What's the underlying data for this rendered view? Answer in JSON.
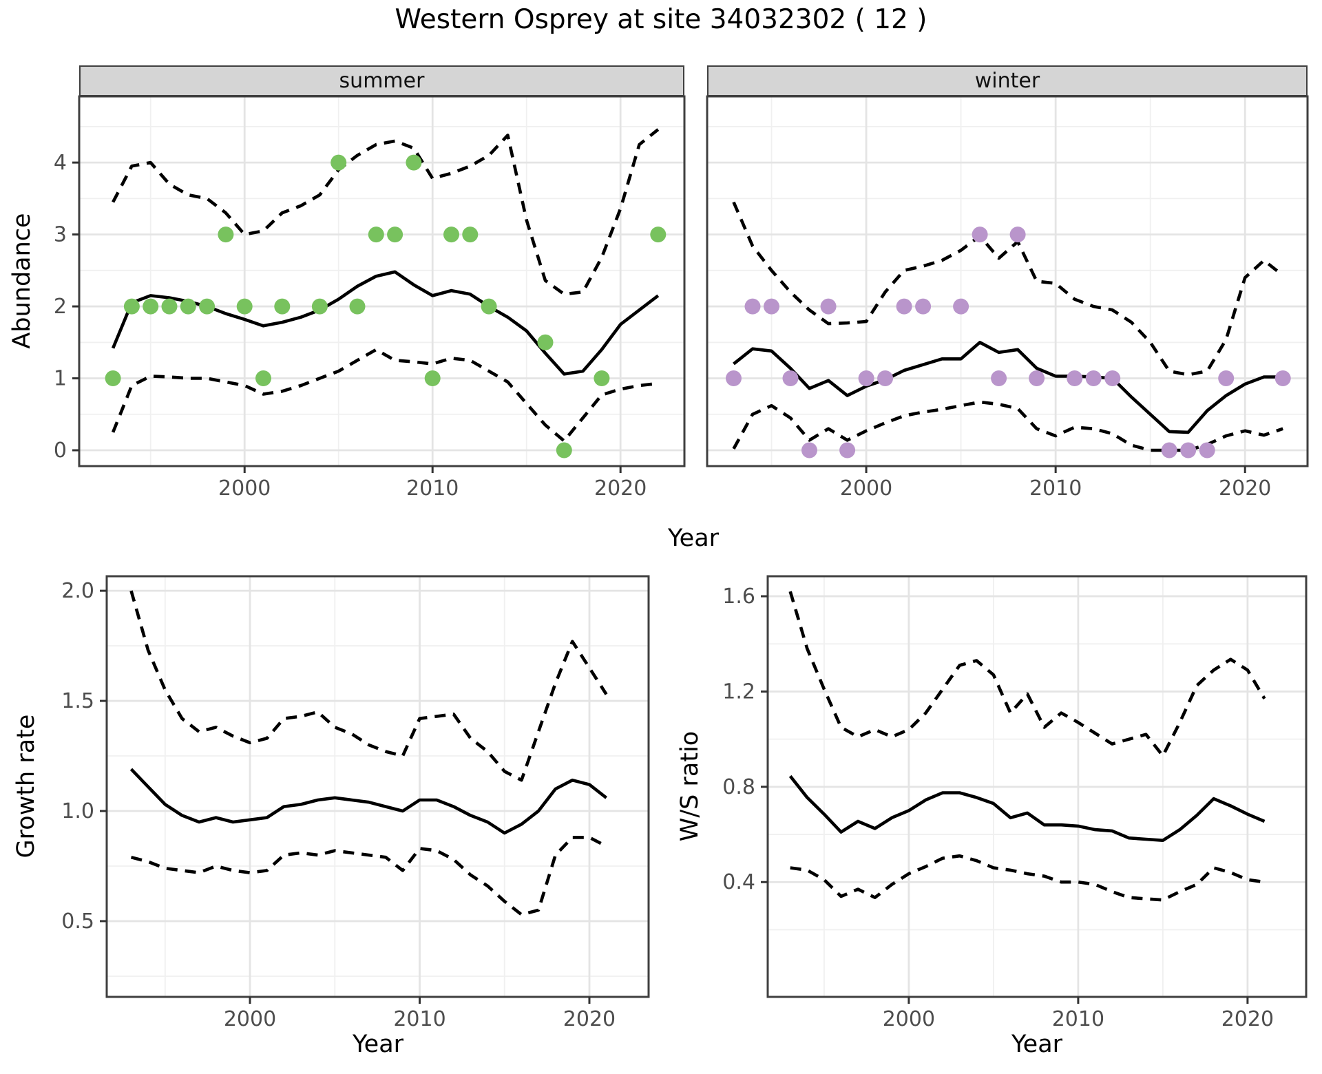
{
  "title": "Western Osprey at site 34032302 ( 12 )",
  "colors": {
    "summer_point": "#78c25e",
    "winter_point": "#b995cb",
    "line": "#000000",
    "strip_bg": "#d5d5d5",
    "grid_major": "#e4e4e4",
    "grid_minor": "#f0f0f0",
    "panel_border": "#3f3f3f",
    "tick_mark": "#333333",
    "tick_label": "#4d4d4d"
  },
  "chart_data": [
    {
      "id": "abundance-summer",
      "type": "line+scatter",
      "facet_label": "summer",
      "xlabel": "Year",
      "ylabel": "Abundance",
      "point_color": "#78c25e",
      "xlim": [
        1991.2,
        2023.4
      ],
      "ylim": [
        -0.22,
        4.92
      ],
      "xticks": {
        "values": [
          2000,
          2010,
          2020
        ],
        "labels": [
          "2000",
          "2010",
          "2020"
        ]
      },
      "yticks": {
        "values": [
          0,
          1,
          2,
          3,
          4
        ],
        "labels": [
          "0",
          "1",
          "2",
          "3",
          "4"
        ]
      },
      "x_minor": [
        1995,
        2005,
        2015
      ],
      "y_minor": [
        0.5,
        1.5,
        2.5,
        3.5,
        4.5
      ],
      "points": {
        "years": [
          1993,
          1994,
          1995,
          1996,
          1997,
          1998,
          1999,
          2000,
          2001,
          2002,
          2004,
          2005,
          2006,
          2007,
          2008,
          2009,
          2010,
          2011,
          2012,
          2013,
          2016,
          2017,
          2019,
          2022
        ],
        "values": [
          1,
          2,
          2,
          2,
          2,
          2,
          3,
          2,
          1,
          2,
          2,
          4,
          2,
          3,
          3,
          4,
          1,
          3,
          3,
          2,
          1.5,
          0,
          1,
          3
        ]
      },
      "mean": {
        "years": [
          1993,
          1994,
          1995,
          1996,
          1997,
          1998,
          1999,
          2000,
          2001,
          2002,
          2003,
          2004,
          2005,
          2006,
          2007,
          2008,
          2009,
          2010,
          2011,
          2012,
          2013,
          2014,
          2015,
          2016,
          2017,
          2018,
          2019,
          2020,
          2021,
          2022
        ],
        "values": [
          1.42,
          2.05,
          2.15,
          2.12,
          2.07,
          2.0,
          1.9,
          1.82,
          1.73,
          1.78,
          1.85,
          1.95,
          2.1,
          2.28,
          2.42,
          2.48,
          2.3,
          2.15,
          2.22,
          2.17,
          2.0,
          1.85,
          1.66,
          1.35,
          1.06,
          1.1,
          1.4,
          1.75,
          1.95,
          2.15
        ]
      },
      "upper": {
        "years": [
          1993,
          1994,
          1995,
          1996,
          1997,
          1998,
          1999,
          2000,
          2001,
          2002,
          2003,
          2004,
          2005,
          2006,
          2007,
          2008,
          2009,
          2010,
          2011,
          2012,
          2013,
          2014,
          2015,
          2016,
          2017,
          2018,
          2019,
          2020,
          2021,
          2022
        ],
        "values": [
          3.45,
          3.95,
          4.0,
          3.7,
          3.55,
          3.5,
          3.3,
          3.0,
          3.05,
          3.3,
          3.4,
          3.55,
          3.9,
          4.1,
          4.25,
          4.3,
          4.2,
          3.78,
          3.85,
          3.95,
          4.1,
          4.38,
          3.2,
          2.36,
          2.17,
          2.2,
          2.68,
          3.36,
          4.25,
          4.46
        ]
      },
      "lower": {
        "years": [
          1993,
          1994,
          1995,
          1996,
          1997,
          1998,
          1999,
          2000,
          2001,
          2002,
          2003,
          2004,
          2005,
          2006,
          2007,
          2008,
          2009,
          2010,
          2011,
          2012,
          2013,
          2014,
          2015,
          2016,
          2017,
          2018,
          2019,
          2020,
          2021,
          2022
        ],
        "values": [
          0.25,
          0.9,
          1.03,
          1.02,
          1.0,
          1.0,
          0.95,
          0.9,
          0.78,
          0.82,
          0.9,
          1.0,
          1.1,
          1.25,
          1.4,
          1.25,
          1.23,
          1.2,
          1.28,
          1.25,
          1.1,
          0.95,
          0.65,
          0.35,
          0.13,
          0.45,
          0.77,
          0.85,
          0.9,
          0.93
        ]
      }
    },
    {
      "id": "abundance-winter",
      "type": "line+scatter",
      "facet_label": "winter",
      "xlabel": "Year",
      "ylabel": "Abundance",
      "point_color": "#b995cb",
      "xlim": [
        1991.6,
        2023.3
      ],
      "ylim": [
        -0.22,
        4.92
      ],
      "xticks": {
        "values": [
          2000,
          2010,
          2020
        ],
        "labels": [
          "2000",
          "2010",
          "2020"
        ]
      },
      "yticks": {
        "values": [
          0,
          1,
          2,
          3,
          4
        ],
        "labels": [
          "0",
          "1",
          "2",
          "3",
          "4"
        ]
      },
      "x_minor": [
        1995,
        2005,
        2015
      ],
      "y_minor": [
        0.5,
        1.5,
        2.5,
        3.5,
        4.5
      ],
      "points": {
        "years": [
          1993,
          1994,
          1995,
          1996,
          1997,
          1998,
          1999,
          2000,
          2001,
          2002,
          2003,
          2005,
          2006,
          2007,
          2008,
          2009,
          2011,
          2012,
          2013,
          2016,
          2017,
          2018,
          2019,
          2022
        ],
        "values": [
          1,
          2,
          2,
          1,
          0,
          2,
          0,
          1,
          1,
          2,
          2,
          2,
          3,
          1,
          3,
          1,
          1,
          1,
          1,
          0,
          0,
          0,
          1,
          1
        ]
      },
      "mean": {
        "years": [
          1993,
          1994,
          1995,
          1996,
          1997,
          1998,
          1999,
          2000,
          2001,
          2002,
          2003,
          2004,
          2005,
          2006,
          2007,
          2008,
          2009,
          2010,
          2011,
          2012,
          2013,
          2014,
          2015,
          2016,
          2017,
          2018,
          2019,
          2020,
          2021,
          2022
        ],
        "values": [
          1.2,
          1.41,
          1.38,
          1.14,
          0.86,
          0.97,
          0.76,
          0.89,
          0.98,
          1.11,
          1.19,
          1.27,
          1.27,
          1.5,
          1.36,
          1.4,
          1.14,
          1.03,
          1.03,
          1.02,
          1.0,
          0.74,
          0.5,
          0.26,
          0.25,
          0.55,
          0.76,
          0.92,
          1.02,
          1.02
        ]
      },
      "upper": {
        "years": [
          1993,
          1994,
          1995,
          1996,
          1997,
          1998,
          1999,
          2000,
          2001,
          2002,
          2003,
          2004,
          2005,
          2006,
          2007,
          2008,
          2009,
          2010,
          2011,
          2012,
          2013,
          2014,
          2015,
          2016,
          2017,
          2018,
          2019,
          2020,
          2021,
          2022
        ],
        "values": [
          3.45,
          2.84,
          2.5,
          2.2,
          1.95,
          1.76,
          1.77,
          1.79,
          2.2,
          2.5,
          2.56,
          2.64,
          2.78,
          2.98,
          2.67,
          2.9,
          2.35,
          2.32,
          2.1,
          2.0,
          1.95,
          1.78,
          1.5,
          1.1,
          1.05,
          1.1,
          1.54,
          2.4,
          2.64,
          2.43
        ]
      },
      "lower": {
        "years": [
          1993,
          1994,
          1995,
          1996,
          1997,
          1998,
          1999,
          2000,
          2001,
          2002,
          2003,
          2004,
          2005,
          2006,
          2007,
          2008,
          2009,
          2010,
          2011,
          2012,
          2013,
          2014,
          2015,
          2016,
          2017,
          2018,
          2019,
          2020,
          2021,
          2022
        ],
        "values": [
          0.02,
          0.5,
          0.62,
          0.45,
          0.14,
          0.3,
          0.14,
          0.27,
          0.38,
          0.48,
          0.53,
          0.57,
          0.62,
          0.67,
          0.64,
          0.58,
          0.3,
          0.2,
          0.32,
          0.3,
          0.23,
          0.07,
          0.0,
          0.0,
          0.0,
          0.08,
          0.2,
          0.27,
          0.21,
          0.3
        ]
      }
    },
    {
      "id": "growth-rate",
      "type": "line",
      "xlabel": "Year",
      "ylabel": "Growth rate",
      "xlim": [
        1991.56,
        2023.49
      ],
      "ylim": [
        0.156,
        2.066
      ],
      "xticks": {
        "values": [
          2000,
          2010,
          2020
        ],
        "labels": [
          "2000",
          "2010",
          "2020"
        ]
      },
      "yticks": {
        "values": [
          0.5,
          1.0,
          1.5,
          2.0
        ],
        "labels": [
          "0.5",
          "1.0",
          "1.5",
          "2.0"
        ]
      },
      "x_minor": [
        1995,
        2005,
        2015
      ],
      "y_minor": [
        0.25,
        0.75,
        1.25,
        1.75
      ],
      "mean": {
        "years": [
          1993,
          1994,
          1995,
          1996,
          1997,
          1998,
          1999,
          2000,
          2001,
          2002,
          2003,
          2004,
          2005,
          2006,
          2007,
          2008,
          2009,
          2010,
          2011,
          2012,
          2013,
          2014,
          2015,
          2016,
          2017,
          2018,
          2019,
          2020,
          2021
        ],
        "values": [
          1.19,
          1.11,
          1.03,
          0.98,
          0.95,
          0.97,
          0.95,
          0.96,
          0.97,
          1.02,
          1.03,
          1.05,
          1.06,
          1.05,
          1.04,
          1.02,
          1.0,
          1.05,
          1.05,
          1.02,
          0.98,
          0.95,
          0.9,
          0.94,
          1.0,
          1.1,
          1.14,
          1.12,
          1.06
        ]
      },
      "upper": {
        "years": [
          1993,
          1994,
          1995,
          1996,
          1997,
          1998,
          1999,
          2000,
          2001,
          2002,
          2003,
          2004,
          2005,
          2006,
          2007,
          2008,
          2009,
          2010,
          2011,
          2012,
          2013,
          2014,
          2015,
          2016,
          2017,
          2018,
          2019,
          2020,
          2021
        ],
        "values": [
          2.0,
          1.73,
          1.55,
          1.42,
          1.36,
          1.38,
          1.34,
          1.31,
          1.33,
          1.42,
          1.43,
          1.45,
          1.38,
          1.35,
          1.3,
          1.27,
          1.25,
          1.42,
          1.43,
          1.44,
          1.33,
          1.27,
          1.18,
          1.14,
          1.36,
          1.58,
          1.77,
          1.65,
          1.53
        ]
      },
      "lower": {
        "years": [
          1993,
          1994,
          1995,
          1996,
          1997,
          1998,
          1999,
          2000,
          2001,
          2002,
          2003,
          2004,
          2005,
          2006,
          2007,
          2008,
          2009,
          2010,
          2011,
          2012,
          2013,
          2014,
          2015,
          2016,
          2017,
          2018,
          2019,
          2020,
          2021
        ],
        "values": [
          0.79,
          0.77,
          0.74,
          0.73,
          0.72,
          0.75,
          0.73,
          0.72,
          0.73,
          0.8,
          0.81,
          0.8,
          0.82,
          0.81,
          0.8,
          0.79,
          0.73,
          0.83,
          0.82,
          0.78,
          0.71,
          0.66,
          0.59,
          0.53,
          0.55,
          0.8,
          0.88,
          0.88,
          0.84
        ]
      }
    },
    {
      "id": "ws-ratio",
      "type": "line",
      "xlabel": "Year",
      "ylabel": "W/S ratio",
      "xlim": [
        1991.67,
        2023.46
      ],
      "ylim": [
        -0.082,
        1.684
      ],
      "xticks": {
        "values": [
          2000,
          2010,
          2020
        ],
        "labels": [
          "2000",
          "2010",
          "2020"
        ]
      },
      "yticks": {
        "values": [
          0.4,
          0.8,
          1.2,
          1.6
        ],
        "labels": [
          "0.4",
          "0.8",
          "1.2",
          "1.6"
        ]
      },
      "x_minor": [
        1995,
        2005,
        2015
      ],
      "y_minor": [
        0.2,
        0.6,
        1.0,
        1.4
      ],
      "mean": {
        "years": [
          1993,
          1994,
          1995,
          1996,
          1997,
          1998,
          1999,
          2000,
          2001,
          2002,
          2003,
          2004,
          2005,
          2006,
          2007,
          2008,
          2009,
          2010,
          2011,
          2012,
          2013,
          2014,
          2015,
          2016,
          2017,
          2018,
          2019,
          2020,
          2021
        ],
        "values": [
          0.845,
          0.755,
          0.685,
          0.61,
          0.655,
          0.625,
          0.67,
          0.7,
          0.745,
          0.775,
          0.775,
          0.755,
          0.73,
          0.67,
          0.69,
          0.64,
          0.64,
          0.635,
          0.62,
          0.615,
          0.585,
          0.58,
          0.575,
          0.62,
          0.68,
          0.75,
          0.72,
          0.685,
          0.655
        ]
      },
      "upper": {
        "years": [
          1993,
          1994,
          1995,
          1996,
          1997,
          1998,
          1999,
          2000,
          2001,
          2002,
          2003,
          2004,
          2005,
          2006,
          2007,
          2008,
          2009,
          2010,
          2011,
          2012,
          2013,
          2014,
          2015,
          2016,
          2017,
          2018,
          2019,
          2020,
          2021
        ],
        "values": [
          1.62,
          1.38,
          1.21,
          1.05,
          1.01,
          1.04,
          1.01,
          1.04,
          1.11,
          1.21,
          1.31,
          1.33,
          1.27,
          1.11,
          1.19,
          1.05,
          1.11,
          1.07,
          1.025,
          0.98,
          1.0,
          1.02,
          0.93,
          1.07,
          1.225,
          1.29,
          1.335,
          1.29,
          1.17
        ]
      },
      "lower": {
        "years": [
          1993,
          1994,
          1995,
          1996,
          1997,
          1998,
          1999,
          2000,
          2001,
          2002,
          2003,
          2004,
          2005,
          2006,
          2007,
          2008,
          2009,
          2010,
          2011,
          2012,
          2013,
          2014,
          2015,
          2016,
          2017,
          2018,
          2019,
          2020,
          2021
        ],
        "values": [
          0.46,
          0.45,
          0.41,
          0.34,
          0.37,
          0.335,
          0.39,
          0.435,
          0.465,
          0.5,
          0.51,
          0.49,
          0.46,
          0.45,
          0.435,
          0.425,
          0.4,
          0.4,
          0.39,
          0.36,
          0.335,
          0.33,
          0.325,
          0.36,
          0.39,
          0.46,
          0.44,
          0.41,
          0.4
        ]
      }
    }
  ]
}
